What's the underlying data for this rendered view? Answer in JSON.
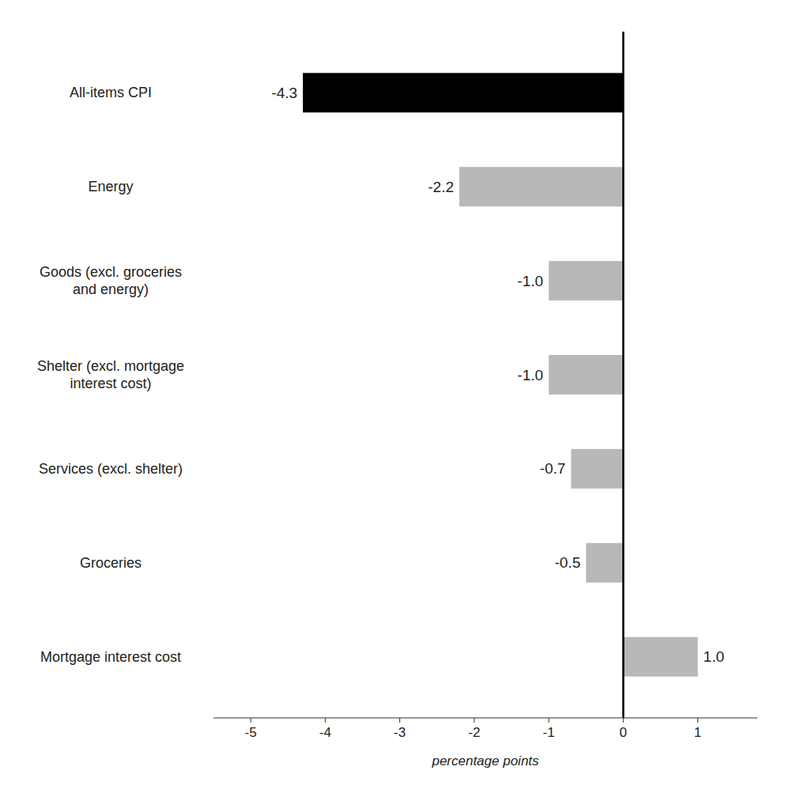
{
  "chart_data": {
    "type": "bar",
    "orientation": "horizontal",
    "categories": [
      "Mortgage interest cost",
      "Groceries",
      "Services (excl. shelter)",
      "Shelter (excl. mortgage\ninterest cost)",
      "Goods (excl. groceries\nand energy)",
      "Energy",
      "All-items CPI"
    ],
    "values": [
      1.0,
      -0.5,
      -0.7,
      -1.0,
      -1.0,
      -2.2,
      -4.3
    ],
    "value_labels": [
      "1.0",
      "-0.5",
      "-0.7",
      "-1.0",
      "-1.0",
      "-2.2",
      "-4.3"
    ],
    "data_labels": true,
    "colors": [
      "#b8b8b8",
      "#b8b8b8",
      "#b8b8b8",
      "#b8b8b8",
      "#b8b8b8",
      "#b8b8b8",
      "#000000"
    ],
    "xlabel": "percentage points",
    "xlim": [
      -5.5,
      1.8
    ],
    "xticks": [
      -5,
      -4,
      -3,
      -2,
      -1,
      0,
      1
    ],
    "grid": false
  }
}
